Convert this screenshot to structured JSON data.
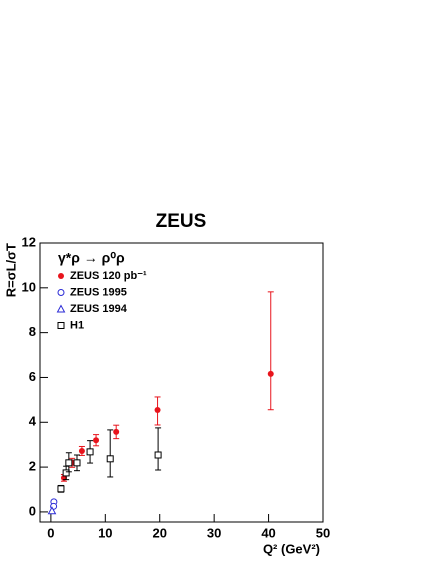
{
  "chart_data": {
    "type": "scatter",
    "title": "ZEUS",
    "x_label": "Q² (GeV²)",
    "y_label": "R=σL/σT",
    "legend_title": "γ*ρ → ρ⁰ρ",
    "xlim": [
      -2,
      50
    ],
    "ylim": [
      -0.45,
      12
    ],
    "xticks": [
      0,
      10,
      20,
      30,
      40,
      50
    ],
    "yticks": [
      0,
      2,
      4,
      6,
      8,
      10,
      12
    ],
    "series": [
      {
        "name": "ZEUS 120 pb⁻¹",
        "color": "#e8141c",
        "marker": "filled-circle",
        "x": [
          2.4,
          3.9,
          5.7,
          8.3,
          12,
          19.6,
          40.4
        ],
        "values": [
          1.52,
          2.19,
          2.72,
          3.2,
          3.57,
          4.55,
          6.16
        ],
        "err_high": [
          0.15,
          0.2,
          0.2,
          0.25,
          0.3,
          0.58,
          3.66
        ],
        "err_low": [
          0.15,
          0.2,
          0.2,
          0.25,
          0.3,
          0.67,
          1.6
        ]
      },
      {
        "name": "ZEUS 1995",
        "color": "#2b2bd6",
        "marker": "open-circle",
        "x": [
          0.55,
          0.5
        ],
        "values": [
          0.45,
          0.25
        ]
      },
      {
        "name": "ZEUS 1994",
        "color": "#2b2bd6",
        "marker": "open-triangle",
        "x": [
          0.2
        ],
        "values": [
          0.05
        ]
      },
      {
        "name": "H1",
        "color": "#000000",
        "marker": "open-square",
        "x": [
          1.85,
          2.8,
          3.3,
          4.8,
          7.2,
          10.9,
          19.7
        ],
        "values": [
          1.03,
          1.74,
          2.19,
          2.19,
          2.68,
          2.37,
          2.54
        ],
        "err_high": [
          0.15,
          0.3,
          0.45,
          0.35,
          0.5,
          1.29,
          1.21
        ],
        "err_low": [
          0.15,
          0.3,
          0.4,
          0.35,
          0.5,
          0.81,
          0.67
        ]
      }
    ]
  }
}
